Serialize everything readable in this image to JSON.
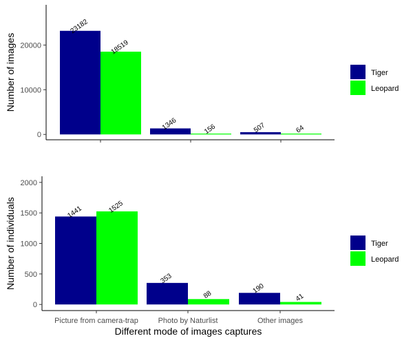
{
  "chart_data": [
    {
      "type": "bar",
      "categories": [
        "Picture from camera-trap",
        "Photo by Naturlist",
        "Other images"
      ],
      "series": [
        {
          "name": "Tiger",
          "color": "#00008B",
          "values": [
            23182,
            1346,
            507
          ]
        },
        {
          "name": "Leopard",
          "color": "#00FF00",
          "values": [
            18519,
            156,
            64
          ]
        }
      ],
      "data_labels": [
        [
          "23182",
          "1346",
          "507"
        ],
        [
          "18519",
          "156",
          "64"
        ]
      ],
      "xlabel": "",
      "ylabel": "Number of images",
      "ylim": [
        -1200,
        29000
      ],
      "yticks": [
        0,
        10000,
        20000
      ],
      "ytick_labels": [
        "0",
        "10000",
        "20000"
      ],
      "show_x_tick_labels": false,
      "grid": false,
      "legend_position": "right"
    },
    {
      "type": "bar",
      "categories": [
        "Picture from camera-trap",
        "Photo by Naturlist",
        "Other images"
      ],
      "series": [
        {
          "name": "Tiger",
          "color": "#00008B",
          "values": [
            1441,
            353,
            190
          ]
        },
        {
          "name": "Leopard",
          "color": "#00FF00",
          "values": [
            1525,
            88,
            41
          ]
        }
      ],
      "data_labels": [
        [
          "1441",
          "353",
          "190"
        ],
        [
          "1525",
          "88",
          "41"
        ]
      ],
      "xlabel": "Different mode of images captures",
      "ylabel": "Number of individuals",
      "ylim": [
        -100,
        2100
      ],
      "yticks": [
        0,
        500,
        1000,
        1500,
        2000
      ],
      "ytick_labels": [
        "0",
        "500",
        "1000",
        "1500",
        "2000"
      ],
      "show_x_tick_labels": true,
      "grid": false,
      "legend_position": "right"
    }
  ]
}
